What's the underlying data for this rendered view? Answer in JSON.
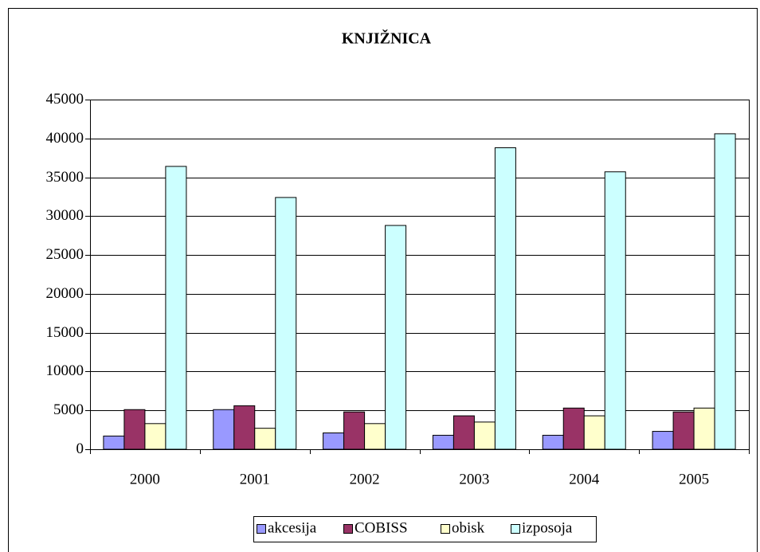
{
  "chart_data": {
    "type": "bar",
    "title": "KNJIŽNICA",
    "categories": [
      "2000",
      "2001",
      "2002",
      "2003",
      "2004",
      "2005"
    ],
    "series": [
      {
        "name": "akcesija",
        "color": "#9999ff",
        "values": [
          1700,
          5100,
          2100,
          1800,
          1800,
          2300
        ]
      },
      {
        "name": "COBISS",
        "color": "#993366",
        "values": [
          5100,
          5600,
          4800,
          4300,
          5300,
          4800
        ]
      },
      {
        "name": "obisk",
        "color": "#ffffcc",
        "values": [
          3300,
          2700,
          3300,
          3500,
          4300,
          5300
        ]
      },
      {
        "name": "izposoja",
        "color": "#ccffff",
        "values": [
          36400,
          32400,
          28800,
          38800,
          35700,
          40600
        ]
      }
    ],
    "ylim": [
      0,
      45000
    ],
    "yticks": [
      0,
      5000,
      10000,
      15000,
      20000,
      25000,
      30000,
      35000,
      40000,
      45000
    ],
    "grid": true,
    "legend": "bottom"
  }
}
